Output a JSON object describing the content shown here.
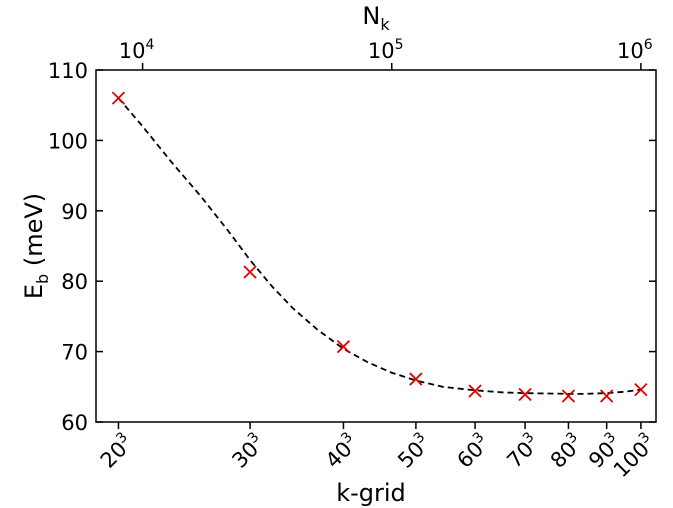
{
  "chart_data": {
    "type": "scatter",
    "title": "",
    "xlabel": "k-grid",
    "ylabel_main": "E",
    "ylabel_sub": "b",
    "ylabel_unit": " (meV)",
    "top_xlabel_main": "N",
    "top_xlabel_sub": "k",
    "xscale": "log",
    "x_var": "N_k",
    "xlim": [
      6500,
      1150000
    ],
    "ylim": [
      60,
      110
    ],
    "yticks": [
      60,
      70,
      80,
      90,
      100,
      110
    ],
    "bottom_ticks": [
      {
        "label": "20",
        "sup": "3",
        "value": 8000
      },
      {
        "label": "30",
        "sup": "3",
        "value": 27000
      },
      {
        "label": "40",
        "sup": "3",
        "value": 64000
      },
      {
        "label": "50",
        "sup": "3",
        "value": 125000
      },
      {
        "label": "60",
        "sup": "3",
        "value": 216000
      },
      {
        "label": "70",
        "sup": "3",
        "value": 343000
      },
      {
        "label": "80",
        "sup": "3",
        "value": 512000
      },
      {
        "label": "90",
        "sup": "3",
        "value": 729000
      },
      {
        "label": "100",
        "sup": "3",
        "value": 1000000
      }
    ],
    "top_ticks": [
      {
        "label": "10",
        "sup": "4",
        "value": 10000
      },
      {
        "label": "10",
        "sup": "5",
        "value": 100000
      },
      {
        "label": "10",
        "sup": "6",
        "value": 1000000
      }
    ],
    "series": [
      {
        "marker": "x",
        "color": "#e00000",
        "x": [
          8000,
          27000,
          64000,
          125000,
          216000,
          343000,
          512000,
          729000,
          1000000
        ],
        "y": [
          106.0,
          81.3,
          70.7,
          66.1,
          64.4,
          63.9,
          63.7,
          63.7,
          64.6
        ]
      },
      {
        "style": "dashed-fit",
        "color": "#000000",
        "x": [
          8000,
          10000,
          13000,
          17000,
          22000,
          27000,
          33000,
          40000,
          50000,
          64000,
          80000,
          100000,
          125000,
          160000,
          216000,
          280000,
          343000,
          420000,
          512000,
          600000,
          729000,
          860000,
          1000000
        ],
        "y": [
          106.0,
          102.0,
          97.0,
          92.2,
          87.2,
          83.0,
          79.3,
          76.2,
          73.2,
          70.4,
          68.5,
          67.0,
          65.9,
          65.0,
          64.5,
          64.2,
          64.1,
          64.05,
          64.0,
          64.0,
          64.1,
          64.3,
          64.6
        ]
      }
    ],
    "grid": false,
    "legend": "none"
  }
}
